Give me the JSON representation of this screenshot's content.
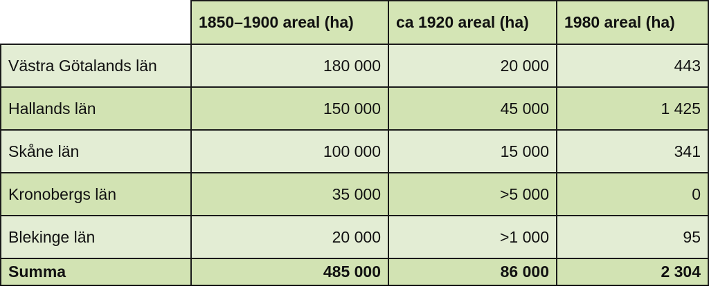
{
  "table": {
    "columns": [
      "1850–1900 areal (ha)",
      "ca 1920 areal (ha)",
      "1980 areal (ha)"
    ],
    "rows": [
      [
        "Västra Götalands län",
        "180 000",
        "20 000",
        "443"
      ],
      [
        "Hallands län",
        "150 000",
        "45 000",
        "1 425"
      ],
      [
        "Skåne län",
        "100 000",
        "15 000",
        "341"
      ],
      [
        "Kronobergs län",
        "35 000",
        ">5 000",
        "0"
      ],
      [
        "Blekinge län",
        "20 000",
        ">1 000",
        "95"
      ]
    ],
    "total": [
      "Summa",
      "485 000",
      "86 000",
      "2 304"
    ]
  }
}
